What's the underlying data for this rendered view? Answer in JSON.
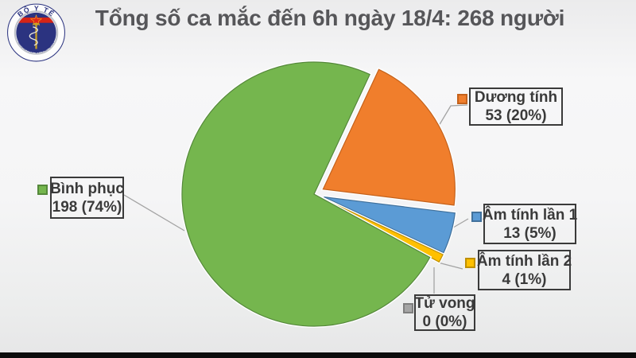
{
  "logo": {
    "top_text": "BỘ Y TẾ",
    "bottom_text": "MINISTRY OF HEALTH",
    "navy": "#2b3380",
    "red": "#d62416",
    "gold": "#c9a227"
  },
  "chart": {
    "title": "Tổng số ca mắc đến 6h ngày 18/4: 268 người"
  },
  "chart_data": {
    "type": "pie",
    "title": "Tổng số ca mắc đến 6h ngày 18/4: 268 người",
    "total": 268,
    "unit": "người",
    "start_angle_deg": 25,
    "legend_position": "data-callouts",
    "slices": [
      {
        "label": "Dương tính",
        "value": 53,
        "percent": 20,
        "color": "#F07E2C",
        "edge": "#C4621C",
        "exploded": true
      },
      {
        "label": "Âm tính lần 1",
        "value": 13,
        "percent": 5,
        "color": "#5B9BD5",
        "edge": "#41719C",
        "exploded": true
      },
      {
        "label": "Âm tính lần 2",
        "value": 4,
        "percent": 1,
        "color": "#FFC000",
        "edge": "#BF9000",
        "exploded": true
      },
      {
        "label": "Tử vong",
        "value": 0,
        "percent": 0,
        "color": "#A5A5A5",
        "edge": "#7F7F7F",
        "exploded": true
      },
      {
        "label": "Bình phục",
        "value": 198,
        "percent": 74,
        "color": "#75B64E",
        "edge": "#55883B",
        "exploded": false
      }
    ]
  }
}
